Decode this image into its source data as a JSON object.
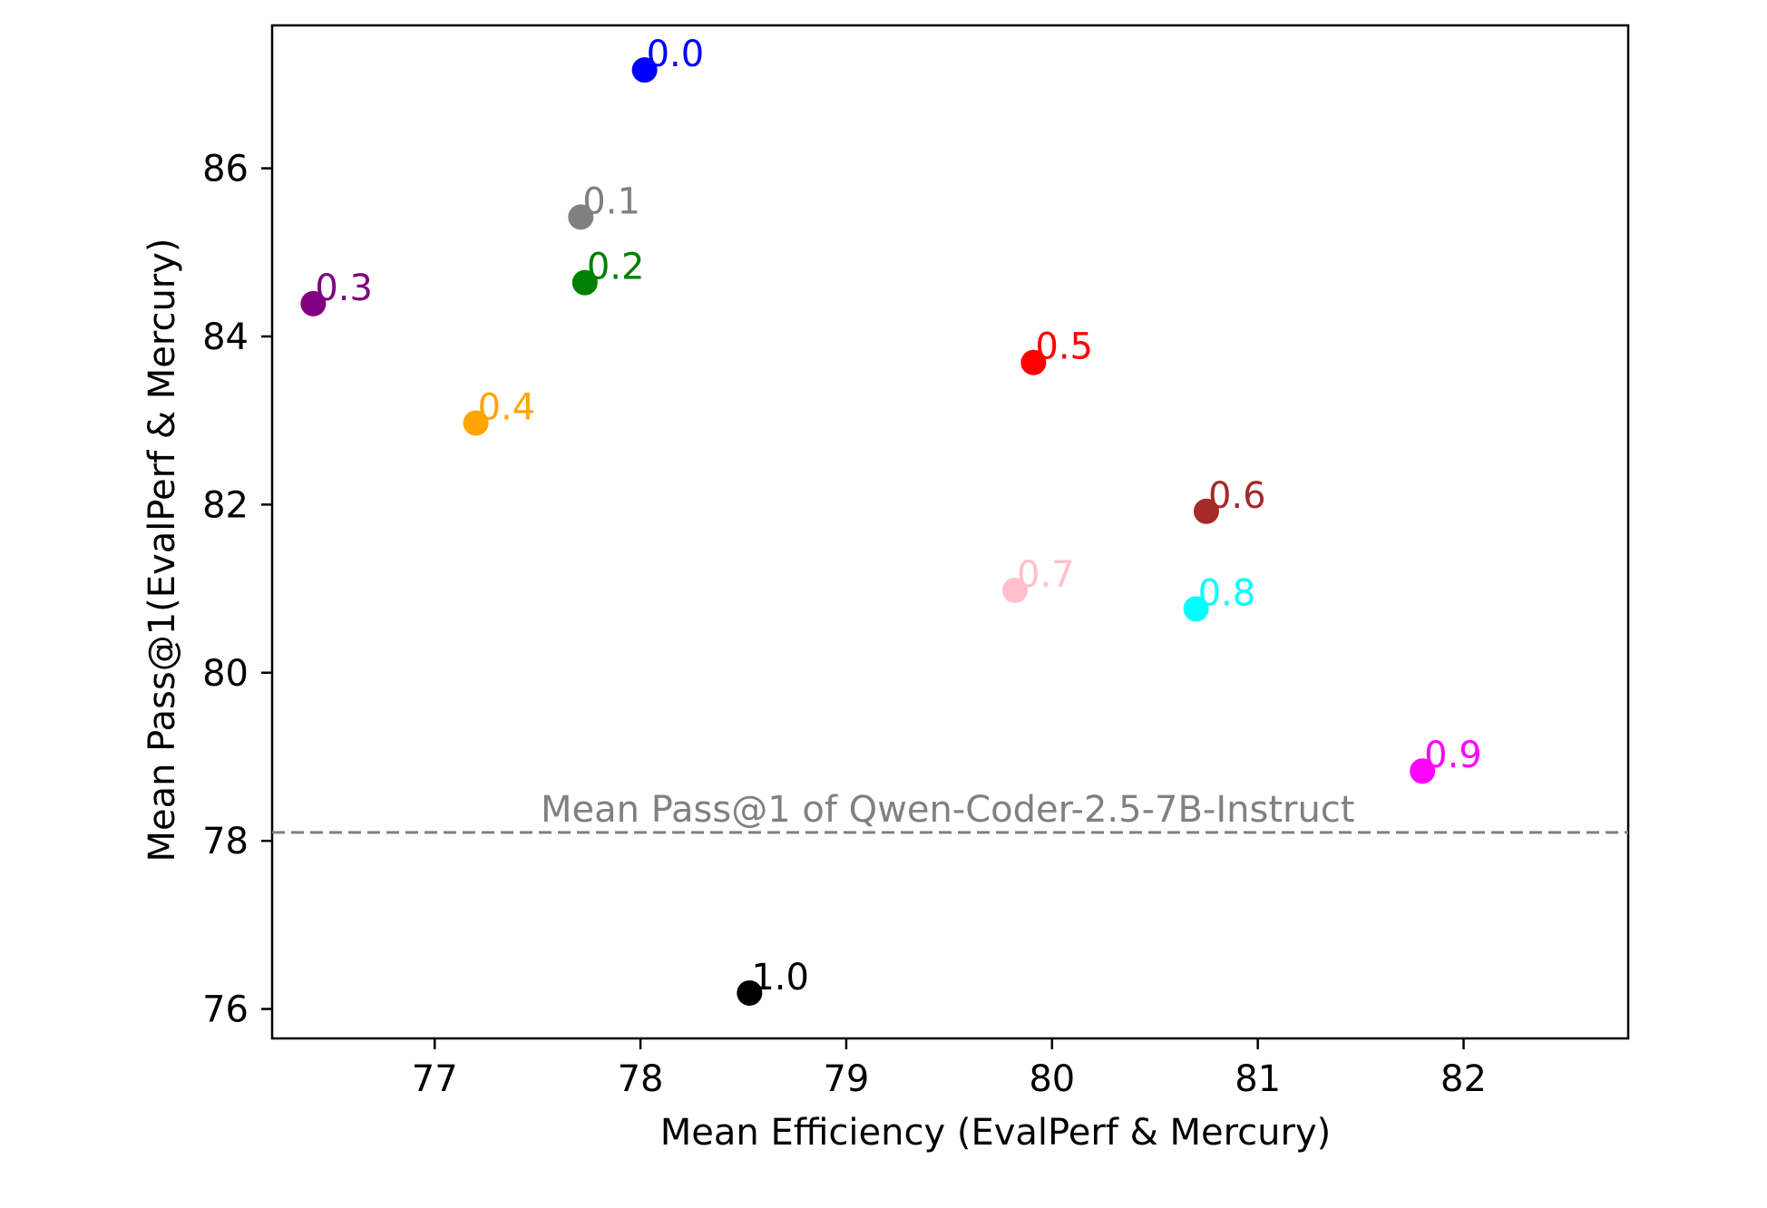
{
  "chart_data": {
    "type": "scatter",
    "title": "",
    "xlabel": "Mean Efficiency (EvalPerf & Mercury)",
    "ylabel": "Mean Pass@1(EvalPerf & Mercury)",
    "xlim": [
      76.21,
      82.8
    ],
    "ylim": [
      75.65,
      87.7
    ],
    "xticks": [
      "77",
      "78",
      "79",
      "80",
      "81",
      "82"
    ],
    "yticks": [
      "76",
      "78",
      "80",
      "82",
      "84",
      "86"
    ],
    "grid": false,
    "points": [
      {
        "label": "0.0",
        "x": 78.02,
        "y": 87.17,
        "color": "#0000ff"
      },
      {
        "label": "0.1",
        "x": 77.71,
        "y": 85.42,
        "color": "#808080"
      },
      {
        "label": "0.2",
        "x": 77.73,
        "y": 84.64,
        "color": "#008000"
      },
      {
        "label": "0.3",
        "x": 76.41,
        "y": 84.39,
        "color": "#800080"
      },
      {
        "label": "0.4",
        "x": 77.2,
        "y": 82.97,
        "color": "#ffa500"
      },
      {
        "label": "0.5",
        "x": 79.91,
        "y": 83.69,
        "color": "#ff0000"
      },
      {
        "label": "0.6",
        "x": 80.75,
        "y": 81.92,
        "color": "#a52a2a"
      },
      {
        "label": "0.7",
        "x": 79.82,
        "y": 80.98,
        "color": "#ffc0cb"
      },
      {
        "label": "0.8",
        "x": 80.7,
        "y": 80.76,
        "color": "#00ffff"
      },
      {
        "label": "0.9",
        "x": 81.8,
        "y": 78.83,
        "color": "#ff00ff"
      },
      {
        "label": "1.0",
        "x": 78.53,
        "y": 76.19,
        "color": "#000000"
      }
    ],
    "reference_line": {
      "y": 78.1,
      "label": "Mean Pass@1 of Qwen-Coder-2.5-7B-Instruct",
      "color": "#808080",
      "style": "dashed"
    }
  }
}
